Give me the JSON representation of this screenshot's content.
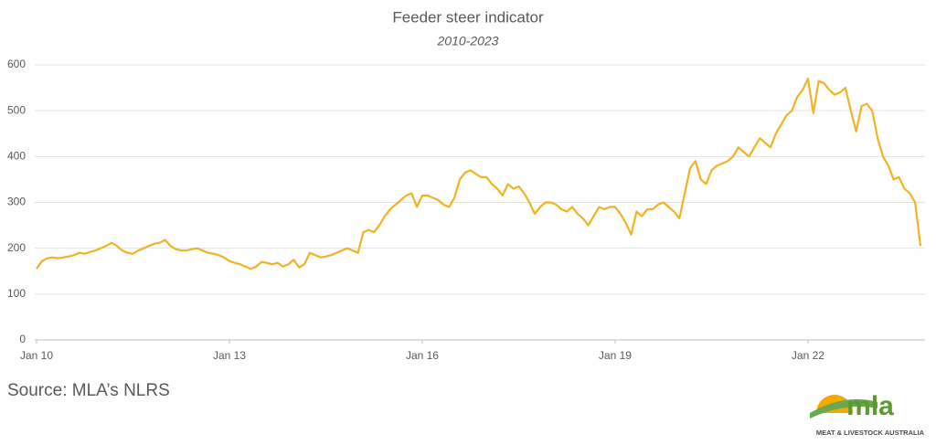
{
  "chart_data": {
    "type": "line",
    "title": "Feeder steer indicator",
    "subtitle": "2010-2023",
    "source": "Source: MLA’s NLRS",
    "logo": {
      "name": "mla",
      "tagline": "MEAT & LIVESTOCK AUSTRALIA"
    },
    "color": "#f0b323",
    "grid": true,
    "xlim": [
      "2010-01",
      "2023-10"
    ],
    "xticks": [
      {
        "value": "2010-01",
        "label": "Jan 10"
      },
      {
        "value": "2013-01",
        "label": "Jan 13"
      },
      {
        "value": "2016-01",
        "label": "Jan 16"
      },
      {
        "value": "2019-01",
        "label": "Jan 19"
      },
      {
        "value": "2022-01",
        "label": "Jan 22"
      }
    ],
    "ylim": [
      0,
      600
    ],
    "yticks": [
      0,
      100,
      200,
      300,
      400,
      500,
      600
    ],
    "x": [
      "2010-01",
      "2010-02",
      "2010-03",
      "2010-04",
      "2010-05",
      "2010-06",
      "2010-07",
      "2010-08",
      "2010-09",
      "2010-10",
      "2010-11",
      "2010-12",
      "2011-01",
      "2011-02",
      "2011-03",
      "2011-04",
      "2011-05",
      "2011-06",
      "2011-07",
      "2011-08",
      "2011-09",
      "2011-10",
      "2011-11",
      "2011-12",
      "2012-01",
      "2012-02",
      "2012-03",
      "2012-04",
      "2012-05",
      "2012-06",
      "2012-07",
      "2012-08",
      "2012-09",
      "2012-10",
      "2012-11",
      "2012-12",
      "2013-01",
      "2013-02",
      "2013-03",
      "2013-04",
      "2013-05",
      "2013-06",
      "2013-07",
      "2013-08",
      "2013-09",
      "2013-10",
      "2013-11",
      "2013-12",
      "2014-01",
      "2014-02",
      "2014-03",
      "2014-04",
      "2014-05",
      "2014-06",
      "2014-07",
      "2014-08",
      "2014-09",
      "2014-10",
      "2014-11",
      "2014-12",
      "2015-01",
      "2015-02",
      "2015-03",
      "2015-04",
      "2015-05",
      "2015-06",
      "2015-07",
      "2015-08",
      "2015-09",
      "2015-10",
      "2015-11",
      "2015-12",
      "2016-01",
      "2016-02",
      "2016-03",
      "2016-04",
      "2016-05",
      "2016-06",
      "2016-07",
      "2016-08",
      "2016-09",
      "2016-10",
      "2016-11",
      "2016-12",
      "2017-01",
      "2017-02",
      "2017-03",
      "2017-04",
      "2017-05",
      "2017-06",
      "2017-07",
      "2017-08",
      "2017-09",
      "2017-10",
      "2017-11",
      "2017-12",
      "2018-01",
      "2018-02",
      "2018-03",
      "2018-04",
      "2018-05",
      "2018-06",
      "2018-07",
      "2018-08",
      "2018-09",
      "2018-10",
      "2018-11",
      "2018-12",
      "2019-01",
      "2019-02",
      "2019-03",
      "2019-04",
      "2019-05",
      "2019-06",
      "2019-07",
      "2019-08",
      "2019-09",
      "2019-10",
      "2019-11",
      "2019-12",
      "2020-01",
      "2020-02",
      "2020-03",
      "2020-04",
      "2020-05",
      "2020-06",
      "2020-07",
      "2020-08",
      "2020-09",
      "2020-10",
      "2020-11",
      "2020-12",
      "2021-01",
      "2021-02",
      "2021-03",
      "2021-04",
      "2021-05",
      "2021-06",
      "2021-07",
      "2021-08",
      "2021-09",
      "2021-10",
      "2021-11",
      "2021-12",
      "2022-01",
      "2022-02",
      "2022-03",
      "2022-04",
      "2022-05",
      "2022-06",
      "2022-07",
      "2022-08",
      "2022-09",
      "2022-10",
      "2022-11",
      "2022-12",
      "2023-01",
      "2023-02",
      "2023-03",
      "2023-04",
      "2023-05",
      "2023-06",
      "2023-07",
      "2023-08",
      "2023-09",
      "2023-10"
    ],
    "values": [
      155,
      172,
      178,
      180,
      178,
      180,
      182,
      185,
      190,
      188,
      192,
      195,
      200,
      205,
      212,
      205,
      195,
      190,
      188,
      195,
      200,
      205,
      210,
      212,
      218,
      205,
      198,
      195,
      195,
      198,
      200,
      195,
      190,
      188,
      185,
      180,
      172,
      168,
      165,
      160,
      155,
      160,
      170,
      168,
      165,
      168,
      160,
      165,
      175,
      158,
      165,
      190,
      185,
      180,
      182,
      185,
      190,
      195,
      200,
      195,
      190,
      235,
      240,
      235,
      250,
      270,
      285,
      295,
      305,
      315,
      320,
      290,
      315,
      315,
      310,
      305,
      295,
      290,
      310,
      350,
      365,
      370,
      362,
      355,
      355,
      340,
      330,
      315,
      340,
      330,
      335,
      320,
      300,
      275,
      290,
      300,
      300,
      295,
      285,
      280,
      290,
      275,
      265,
      250,
      270,
      290,
      285,
      290,
      290,
      275,
      255,
      230,
      280,
      270,
      285,
      285,
      295,
      300,
      290,
      280,
      265,
      320,
      375,
      390,
      350,
      340,
      370,
      380,
      385,
      390,
      400,
      420,
      410,
      400,
      420,
      440,
      430,
      420,
      450,
      470,
      490,
      500,
      530,
      545,
      570,
      495,
      565,
      560,
      545,
      535,
      540,
      550,
      500,
      455,
      510,
      515,
      500,
      440,
      400,
      380,
      350,
      355,
      330,
      320,
      300,
      205
    ]
  }
}
